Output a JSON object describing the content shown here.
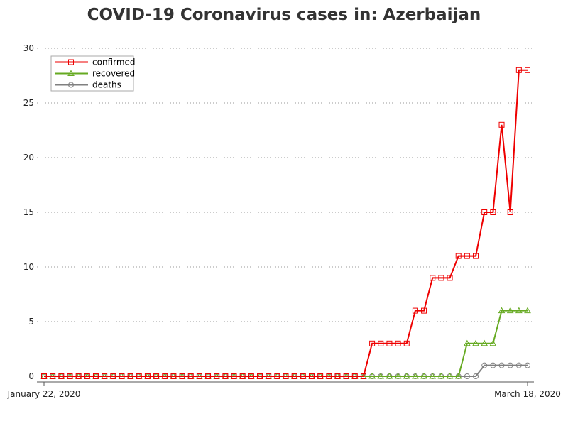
{
  "chart_data": {
    "type": "line",
    "title": "COVID-19 Coronavirus cases in: Azerbaijan",
    "xlabel": "",
    "ylabel": "",
    "x_start_label": "January 22, 2020",
    "x_end_label": "March 18, 2020",
    "x": [
      "2020-01-22",
      "2020-01-23",
      "2020-01-24",
      "2020-01-25",
      "2020-01-26",
      "2020-01-27",
      "2020-01-28",
      "2020-01-29",
      "2020-01-30",
      "2020-01-31",
      "2020-02-01",
      "2020-02-02",
      "2020-02-03",
      "2020-02-04",
      "2020-02-05",
      "2020-02-06",
      "2020-02-07",
      "2020-02-08",
      "2020-02-09",
      "2020-02-10",
      "2020-02-11",
      "2020-02-12",
      "2020-02-13",
      "2020-02-14",
      "2020-02-15",
      "2020-02-16",
      "2020-02-17",
      "2020-02-18",
      "2020-02-19",
      "2020-02-20",
      "2020-02-21",
      "2020-02-22",
      "2020-02-23",
      "2020-02-24",
      "2020-02-25",
      "2020-02-26",
      "2020-02-27",
      "2020-02-28",
      "2020-02-29",
      "2020-03-01",
      "2020-03-02",
      "2020-03-03",
      "2020-03-04",
      "2020-03-05",
      "2020-03-06",
      "2020-03-07",
      "2020-03-08",
      "2020-03-09",
      "2020-03-10",
      "2020-03-11",
      "2020-03-12",
      "2020-03-13",
      "2020-03-14",
      "2020-03-15",
      "2020-03-16",
      "2020-03-17",
      "2020-03-18"
    ],
    "ylim": [
      0,
      30
    ],
    "yticks": [
      0,
      5,
      10,
      15,
      20,
      25,
      30
    ],
    "grid": "horizontal-dotted",
    "legend_position": "top-left",
    "series": [
      {
        "name": "confirmed",
        "color": "#ee0000",
        "marker": "square",
        "values": [
          0,
          0,
          0,
          0,
          0,
          0,
          0,
          0,
          0,
          0,
          0,
          0,
          0,
          0,
          0,
          0,
          0,
          0,
          0,
          0,
          0,
          0,
          0,
          0,
          0,
          0,
          0,
          0,
          0,
          0,
          0,
          0,
          0,
          0,
          0,
          0,
          0,
          0,
          3,
          3,
          3,
          3,
          3,
          6,
          6,
          9,
          9,
          9,
          11,
          11,
          11,
          15,
          15,
          23,
          15,
          28,
          28
        ]
      },
      {
        "name": "recovered",
        "color": "#66aa22",
        "marker": "triangle",
        "values": [
          0,
          0,
          0,
          0,
          0,
          0,
          0,
          0,
          0,
          0,
          0,
          0,
          0,
          0,
          0,
          0,
          0,
          0,
          0,
          0,
          0,
          0,
          0,
          0,
          0,
          0,
          0,
          0,
          0,
          0,
          0,
          0,
          0,
          0,
          0,
          0,
          0,
          0,
          0,
          0,
          0,
          0,
          0,
          0,
          0,
          0,
          0,
          0,
          0,
          3,
          3,
          3,
          3,
          6,
          6,
          6,
          6
        ]
      },
      {
        "name": "deaths",
        "color": "#808080",
        "marker": "circle",
        "values": [
          0,
          0,
          0,
          0,
          0,
          0,
          0,
          0,
          0,
          0,
          0,
          0,
          0,
          0,
          0,
          0,
          0,
          0,
          0,
          0,
          0,
          0,
          0,
          0,
          0,
          0,
          0,
          0,
          0,
          0,
          0,
          0,
          0,
          0,
          0,
          0,
          0,
          0,
          0,
          0,
          0,
          0,
          0,
          0,
          0,
          0,
          0,
          0,
          0,
          0,
          0,
          1,
          1,
          1,
          1,
          1,
          1
        ]
      }
    ]
  }
}
